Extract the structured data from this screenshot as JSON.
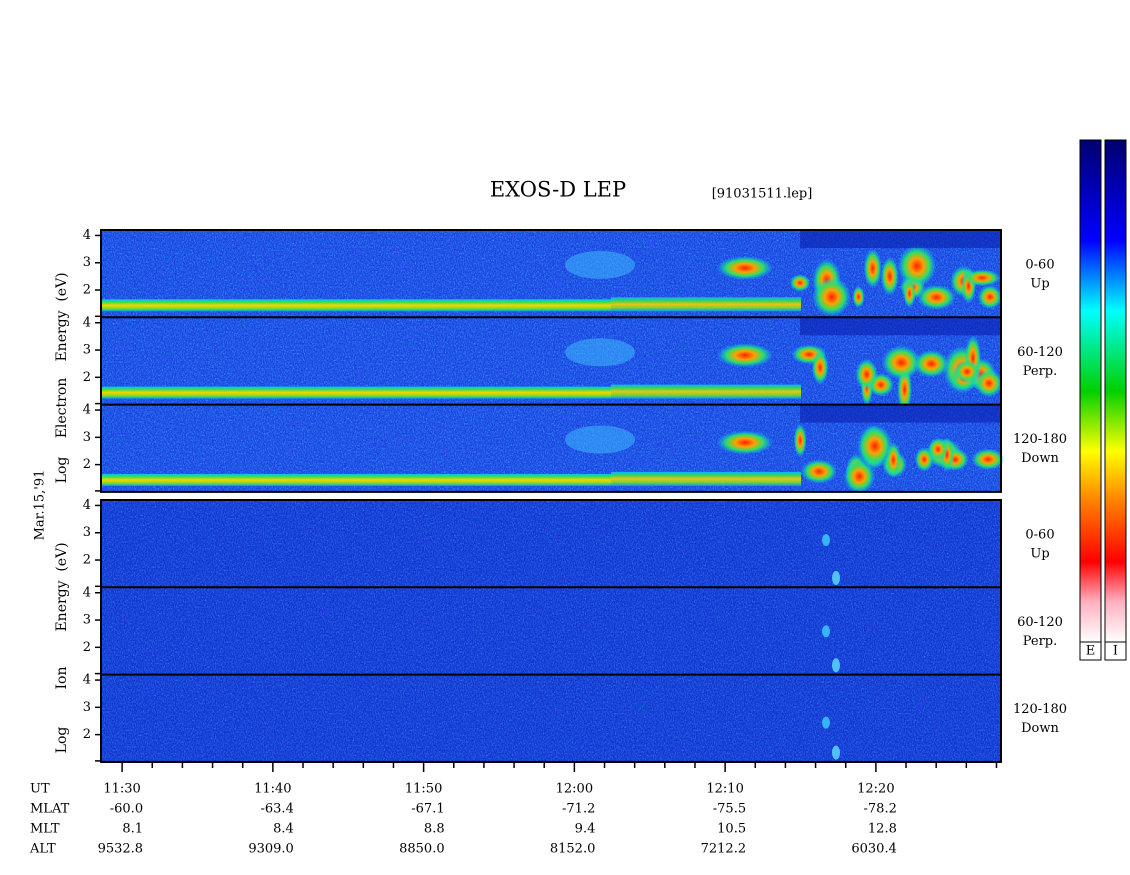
{
  "chart_data": {
    "type": "spectrogram",
    "title": "EXOS-D LEP",
    "file_label": "[91031511.lep]",
    "date_label": "Mar.15,'91",
    "panels": [
      {
        "ylabel": [
          "Log",
          "Electron",
          "Energy",
          "(eV)"
        ]
      },
      {
        "ylabel": [
          "Log",
          "Ion",
          "Energy",
          "(eV)"
        ]
      }
    ],
    "angles": [
      {
        "range": "0-60",
        "direction": "Up"
      },
      {
        "range": "60-120",
        "direction": "Perp."
      },
      {
        "range": "120-180",
        "direction": "Down"
      }
    ],
    "ylim": [
      1,
      4.2
    ],
    "yticks": [
      2,
      3,
      4
    ],
    "xlim": [
      688.6,
      748.3
    ],
    "xticks": [
      {
        "value": 690,
        "label": "11:30"
      },
      {
        "value": 700,
        "label": "11:40"
      },
      {
        "value": 710,
        "label": "11:50"
      },
      {
        "value": 720,
        "label": "12:00"
      },
      {
        "value": 730,
        "label": "12:10"
      },
      {
        "value": 740,
        "label": "12:20"
      }
    ],
    "xminorticks": [
      692,
      694,
      696,
      698,
      702,
      704,
      706,
      708,
      712,
      714,
      716,
      718,
      722,
      724,
      726,
      728,
      732,
      734,
      736,
      738,
      742,
      744,
      746,
      748
    ],
    "xlabel": "UT",
    "orbit_rows": [
      {
        "label": "MLAT",
        "values": [
          "-60.0",
          "-63.4",
          "-67.1",
          "-71.2",
          "-75.5",
          "-78.2"
        ]
      },
      {
        "label": "MLT",
        "values": [
          "8.1",
          "8.4",
          "8.8",
          "9.4",
          "10.5",
          "12.8"
        ]
      },
      {
        "label": "ALT",
        "values": [
          "9532.8",
          "9309.0",
          "8850.0",
          "8152.0",
          "7212.2",
          "6030.4"
        ]
      }
    ],
    "colorbars": [
      "E",
      "I"
    ]
  }
}
